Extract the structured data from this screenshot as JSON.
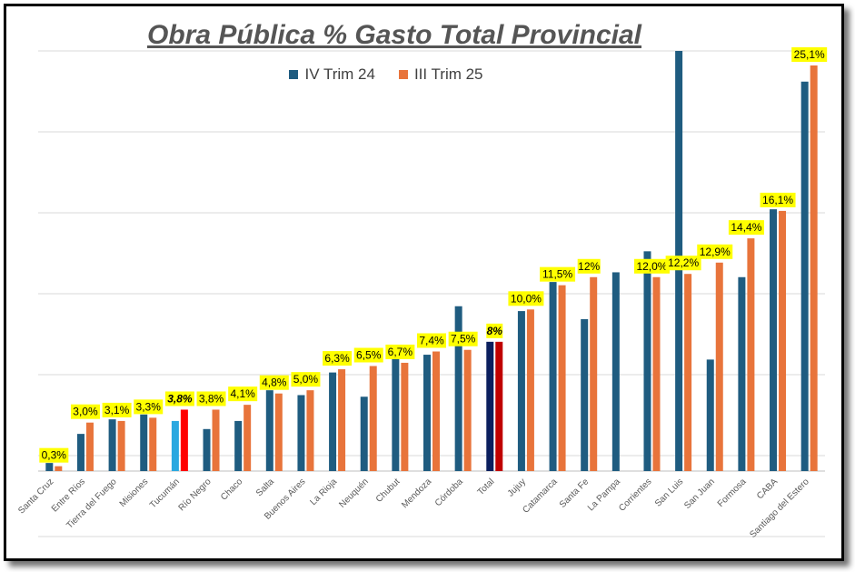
{
  "chart_data": {
    "type": "bar",
    "title": "Obra Pública % Gasto Total Provincial",
    "xlabel": "",
    "ylabel": "",
    "ylim": [
      0,
      26
    ],
    "grid": true,
    "legend_position": "top-center",
    "categories": [
      "Santa Cruz",
      "Entre Ríos",
      "Tierra del Fuego",
      "Misiones",
      "Tucumán",
      "Río Negro",
      "Chaco",
      "Salta",
      "Buenos Aires",
      "La Rioja",
      "Neuquén",
      "Chubut",
      "Mendoza",
      "Córdoba",
      "Total",
      "Jujuy",
      "Catamarca",
      "Santa Fe",
      "La Pampa",
      "Corrientes",
      "San Luis",
      "San Juan",
      "Formosa",
      "CABA",
      "Santiago del Estero"
    ],
    "series": [
      {
        "name": "IV Trim 24",
        "color": "#1f5c80",
        "values": [
          0.5,
          2.3,
          3.2,
          3.5,
          3.1,
          2.6,
          3.1,
          5.0,
          4.7,
          6.1,
          4.6,
          7.0,
          7.2,
          10.2,
          8.0,
          9.9,
          11.7,
          9.4,
          12.3,
          13.6,
          26.0,
          6.9,
          12.0,
          16.2,
          24.1
        ]
      },
      {
        "name": "III Trim 25",
        "color": "#e8743b",
        "values": [
          0.3,
          3.0,
          3.1,
          3.3,
          3.8,
          3.8,
          4.1,
          4.8,
          5.0,
          6.3,
          6.5,
          6.7,
          7.4,
          7.5,
          8.0,
          10.0,
          11.5,
          12.0,
          null,
          12.0,
          12.2,
          12.9,
          14.4,
          16.1,
          25.1
        ]
      }
    ],
    "data_labels": [
      "0,3%",
      "3,0%",
      "3,1%",
      "3,3%",
      "3,8%",
      "3,8%",
      "4,1%",
      "4,8%",
      "5,0%",
      "6,3%",
      "6,5%",
      "6,7%",
      "7,4%",
      "7,5%",
      "8%",
      "10,0%",
      "11,5%",
      "12%",
      "",
      "12,0%",
      "12,2%",
      "12,9%",
      "14,4%",
      "16,1%",
      "25,1%"
    ],
    "highlight": {
      "Tucumán": {
        "IV Trim 24": "#29a8e0",
        "III Trim 25": "#ff0000"
      },
      "Total": {
        "IV Trim 24": "#0b1f5e",
        "III Trim 25": "#c00000"
      }
    },
    "bold_italic_labels": [
      "Tucumán",
      "Total"
    ],
    "label_bg": "#ffff00"
  }
}
